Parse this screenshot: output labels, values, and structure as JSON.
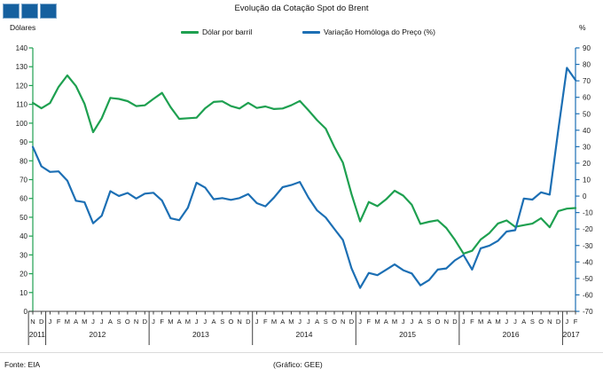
{
  "title": "Evolução da Cotação Spot do Brent",
  "logo": {
    "color": "#15609F",
    "square_count": 3
  },
  "legend": [
    {
      "label": "Dólar por barril",
      "color": "#1EA050"
    },
    {
      "label": "Variação Homóloga do Preço (%)",
      "color": "#1C6FB4"
    }
  ],
  "footer": {
    "source": "Fonte: EIA",
    "credit": "(Gráfico: GEE)"
  },
  "chart_data": {
    "type": "line",
    "title": "Evolução da Cotação Spot do Brent",
    "grid": false,
    "legend_position": "top",
    "left_axis": {
      "label": "Dólares",
      "min": 0,
      "max": 140,
      "step": 10,
      "color": "#1EA050"
    },
    "right_axis": {
      "label": "%",
      "min": -70,
      "max": 90,
      "step": 10,
      "color": "#1C6FB4"
    },
    "x_months": [
      "N",
      "D",
      "J",
      "F",
      "M",
      "A",
      "M",
      "J",
      "J",
      "A",
      "S",
      "O",
      "N",
      "D",
      "J",
      "F",
      "M",
      "A",
      "M",
      "J",
      "J",
      "A",
      "S",
      "O",
      "N",
      "D",
      "J",
      "F",
      "M",
      "A",
      "M",
      "J",
      "J",
      "A",
      "S",
      "O",
      "N",
      "D",
      "J",
      "F",
      "M",
      "A",
      "M",
      "J",
      "J",
      "A",
      "S",
      "O",
      "N",
      "D",
      "J",
      "F",
      "M",
      "A",
      "M",
      "J",
      "J",
      "A",
      "S",
      "O",
      "N",
      "D",
      "J",
      "F"
    ],
    "years": [
      {
        "label": "2011",
        "start": 0,
        "end": 1
      },
      {
        "label": "2012",
        "start": 2,
        "end": 13
      },
      {
        "label": "2013",
        "start": 14,
        "end": 25
      },
      {
        "label": "2014",
        "start": 26,
        "end": 37
      },
      {
        "label": "2015",
        "start": 38,
        "end": 49
      },
      {
        "label": "2016",
        "start": 50,
        "end": 61
      },
      {
        "label": "2017",
        "start": 62,
        "end": 63
      }
    ],
    "series": [
      {
        "name": "Dólar por barril",
        "axis": "left",
        "color": "#1EA050",
        "values": [
          110.8,
          107.9,
          110.7,
          119.3,
          125.4,
          119.8,
          110.3,
          95.2,
          102.6,
          113.4,
          112.9,
          111.7,
          109.1,
          109.5,
          112.9,
          116.1,
          108.5,
          102.3,
          102.6,
          102.9,
          107.9,
          111.3,
          111.6,
          109.1,
          107.8,
          110.8,
          108.1,
          108.9,
          107.5,
          107.8,
          109.5,
          111.8,
          106.8,
          101.6,
          97.1,
          87.4,
          79.0,
          62.3,
          47.8,
          58.1,
          55.9,
          59.5,
          64.1,
          61.5,
          56.6,
          46.5,
          47.6,
          48.4,
          44.3,
          38.0,
          30.7,
          32.2,
          38.2,
          41.6,
          46.7,
          48.3,
          44.9,
          45.8,
          46.6,
          49.5,
          44.7,
          53.3,
          54.6,
          54.9
        ]
      },
      {
        "name": "Variação Homóloga do Preço (%)",
        "axis": "right",
        "color": "#1C6FB4",
        "values": [
          29.9,
          18.1,
          14.7,
          15.0,
          9.4,
          -2.8,
          -3.7,
          -16.5,
          -11.9,
          3.0,
          0.1,
          1.9,
          -1.5,
          1.5,
          2.0,
          -2.7,
          -13.5,
          -14.6,
          -7.0,
          8.1,
          5.2,
          -1.9,
          -1.2,
          -2.3,
          -1.2,
          1.2,
          -4.3,
          -6.2,
          -0.9,
          5.4,
          6.7,
          8.6,
          -1.0,
          -8.7,
          -13.0,
          -19.9,
          -26.7,
          -43.8,
          -55.8,
          -46.7,
          -48.0,
          -44.8,
          -41.5,
          -45.0,
          -47.0,
          -54.2,
          -51.0,
          -44.6,
          -43.9,
          -39.0,
          -35.8,
          -44.6,
          -31.7,
          -30.1,
          -27.1,
          -21.5,
          -20.7,
          -1.5,
          -2.1,
          2.3,
          0.9,
          40.3,
          77.9,
          70.5
        ]
      }
    ]
  }
}
